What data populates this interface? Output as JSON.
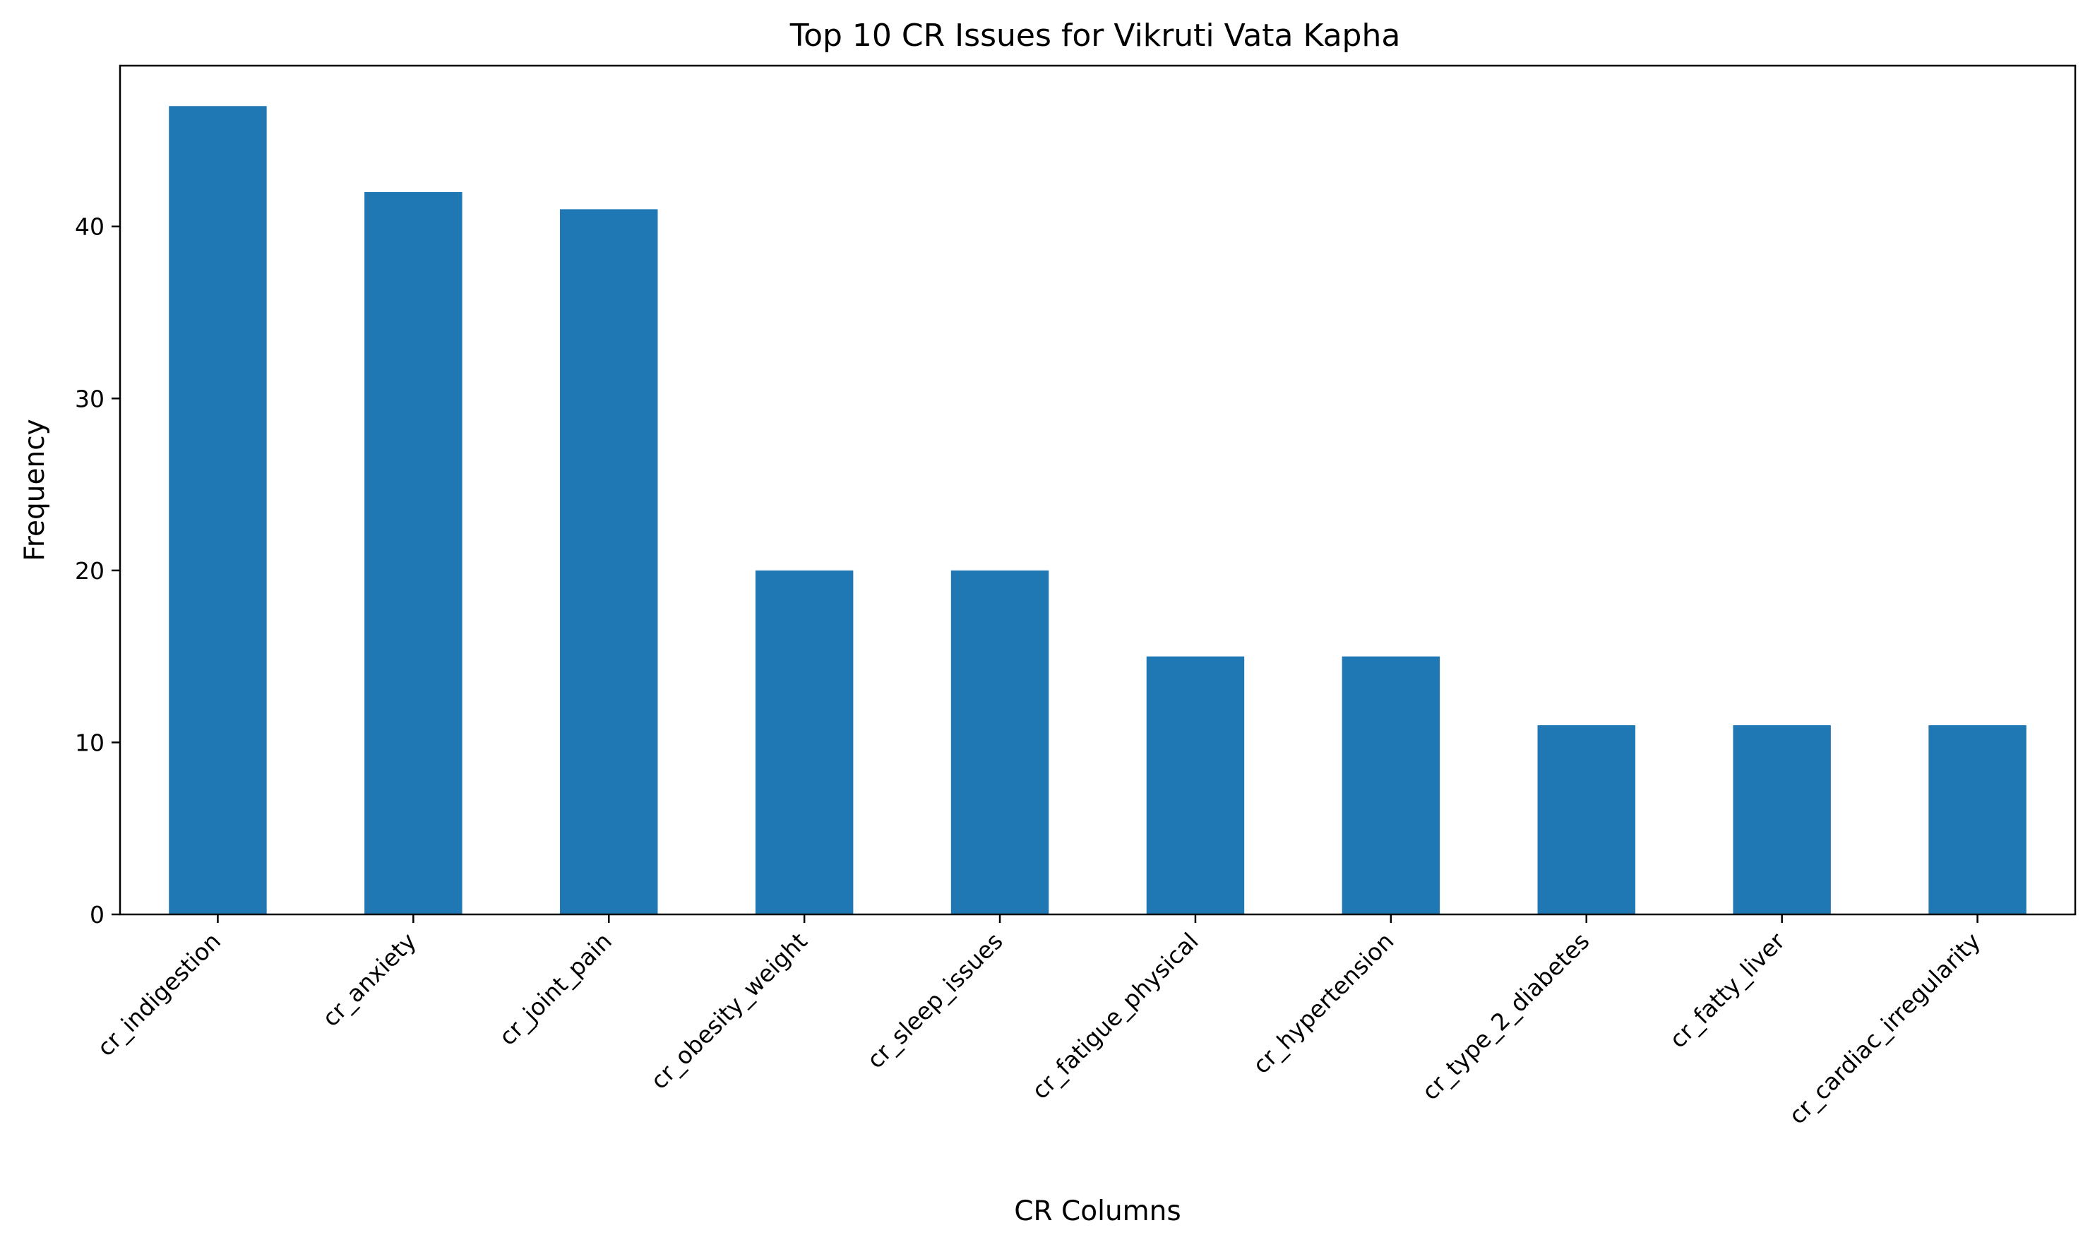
{
  "chart_data": {
    "type": "bar",
    "title": "Top 10 CR Issues for Vikruti Vata Kapha",
    "xlabel": "CR Columns",
    "ylabel": "Frequency",
    "categories": [
      "cr_indigestion",
      "cr_anxiety",
      "cr_joint_pain",
      "cr_obesity_weight",
      "cr_sleep_issues",
      "cr_fatigue_physical",
      "cr_hypertension",
      "cr_type_2_diabetes",
      "cr_fatty_liver",
      "cr_cardiac_irregularity"
    ],
    "values": [
      47,
      42,
      41,
      20,
      20,
      15,
      15,
      11,
      11,
      11
    ],
    "ylim": [
      0,
      49.35
    ],
    "yticks": [
      0,
      10,
      20,
      30,
      40
    ],
    "grid": false,
    "legend": "none",
    "bar_color": "#1f77b4"
  }
}
